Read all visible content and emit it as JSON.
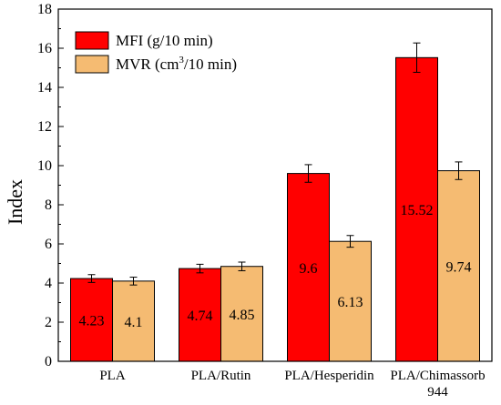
{
  "chart_data": {
    "type": "bar",
    "title": "",
    "xlabel": "",
    "ylabel": "Index",
    "ylim": [
      0,
      18
    ],
    "yticks": [
      0,
      2,
      4,
      6,
      8,
      10,
      12,
      14,
      16,
      18
    ],
    "categories": [
      [
        "PLA"
      ],
      [
        "PLA/Rutin"
      ],
      [
        "PLA/Hesperidin"
      ],
      [
        "PLA/Chimassorb",
        "944"
      ]
    ],
    "series": [
      {
        "name": "MFI (g/10 min)",
        "color": "#ff0000",
        "values": [
          4.23,
          4.74,
          9.6,
          15.52
        ],
        "errors": [
          0.2,
          0.22,
          0.45,
          0.75
        ],
        "labels": [
          "4.23",
          "4.74",
          "9.6",
          "15.52"
        ]
      },
      {
        "name_parts": [
          "MVR (cm",
          "3",
          "/10 min)"
        ],
        "color": "#f5bb72",
        "values": [
          4.1,
          4.85,
          6.13,
          9.74
        ],
        "errors": [
          0.2,
          0.22,
          0.3,
          0.45
        ],
        "labels": [
          "4.1",
          "4.85",
          "6.13",
          "9.74"
        ]
      }
    ],
    "grid": false,
    "legend": "top-left"
  }
}
